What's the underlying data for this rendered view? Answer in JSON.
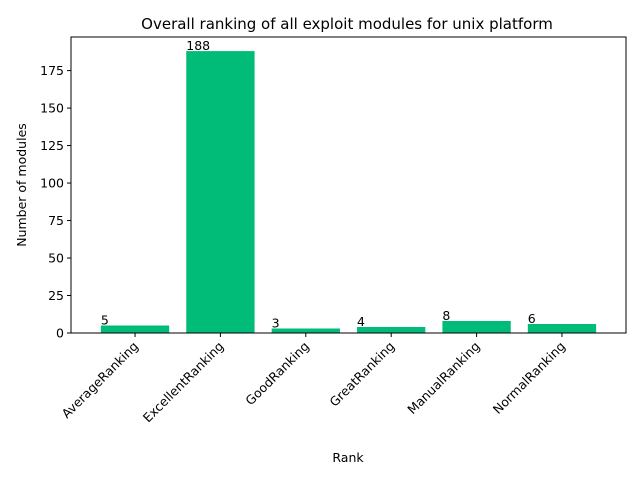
{
  "chart_data": {
    "type": "bar",
    "title": "Overall ranking of all exploit modules for unix platform",
    "xlabel": "Rank",
    "ylabel": "Number of modules",
    "categories": [
      "AverageRanking",
      "ExcellentRanking",
      "GoodRanking",
      "GreatRanking",
      "ManualRanking",
      "NormalRanking"
    ],
    "values": [
      5,
      188,
      3,
      4,
      8,
      6
    ],
    "data_labels": [
      "5",
      "188",
      "3",
      "4",
      "8",
      "6"
    ],
    "ylim": [
      0,
      197.4
    ],
    "yticks": [
      0,
      25,
      50,
      75,
      100,
      125,
      150,
      175
    ],
    "ytick_labels": [
      "0",
      "25",
      "50",
      "75",
      "100",
      "125",
      "150",
      "175"
    ],
    "bar_color": "#00BC78",
    "grid": false,
    "legend": "none"
  }
}
